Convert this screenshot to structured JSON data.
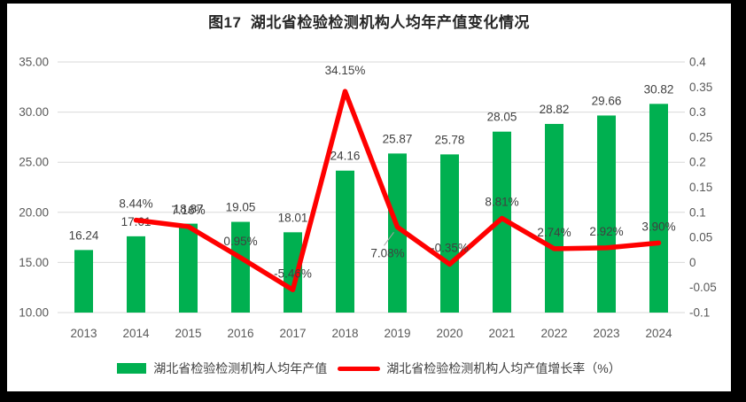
{
  "title": "图17  湖北省检验检测机构人均年产值变化情况",
  "chart_data": {
    "type": "combo-bar-line",
    "categories": [
      "2013",
      "2014",
      "2015",
      "2016",
      "2017",
      "2018",
      "2019",
      "2020",
      "2021",
      "2022",
      "2023",
      "2024"
    ],
    "series": [
      {
        "name": "湖北省检验检测机构人均年产值",
        "type": "bar",
        "axis": "left",
        "color": "#00B050",
        "values": [
          16.24,
          17.61,
          18.87,
          19.05,
          18.01,
          24.16,
          25.87,
          25.78,
          28.05,
          28.82,
          29.66,
          30.82
        ],
        "labels": [
          "16.24",
          "17.61",
          "18.87",
          "19.05",
          "18.01",
          "24.16",
          "25.87",
          "25.78",
          "28.05",
          "28.82",
          "29.66",
          "30.82"
        ]
      },
      {
        "name": "湖北省检验检测机构人均产值增长率（%）",
        "type": "line",
        "axis": "right",
        "color": "#FF0000",
        "values": [
          null,
          0.0844,
          0.0716,
          0.0095,
          -0.0546,
          0.3415,
          0.0708,
          -0.0035,
          0.0881,
          0.0274,
          0.0292,
          0.039
        ],
        "labels": [
          null,
          "8.44%",
          "7.16%",
          "0.95%",
          "-5.46%",
          "34.15%",
          "7.08%",
          "-0.35%",
          "8.81%",
          "2.74%",
          "2.92%",
          "3.90%"
        ]
      }
    ],
    "left_axis": {
      "min": 10,
      "max": 35,
      "ticks": [
        "35.00",
        "30.00",
        "25.00",
        "20.00",
        "15.00",
        "10.00"
      ]
    },
    "right_axis": {
      "min": -0.1,
      "max": 0.4,
      "ticks": [
        "0.4",
        "0.35",
        "0.3",
        "0.25",
        "0.2",
        "0.15",
        "0.1",
        "0.05",
        "0",
        "-0.05",
        "-0.1"
      ]
    },
    "grid": true,
    "legend_position": "bottom",
    "gridline_color": "#D9D9D9",
    "axis_text_color": "#595959",
    "label_text_color": "#404040"
  }
}
